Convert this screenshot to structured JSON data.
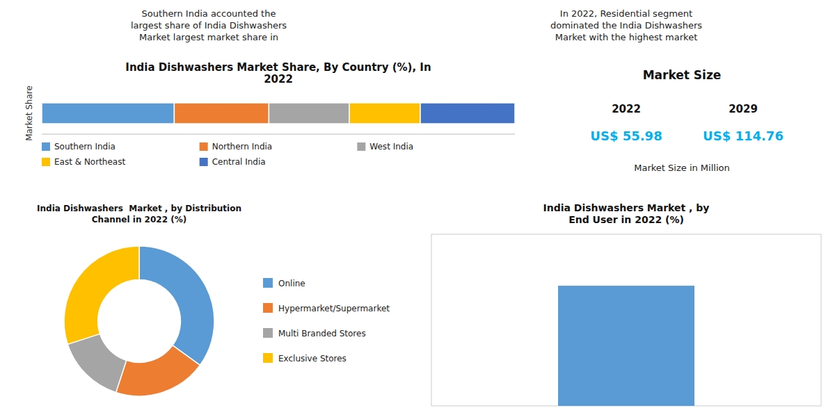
{
  "annotations": [
    "Southern India accounted the\nlargest share of India Dishwashers\nMarket largest market share in",
    "In 2022, Residential segment\ndominated the India Dishwashers\nMarket with the highest market"
  ],
  "chart_data": [
    {
      "type": "bar",
      "orientation": "horizontal",
      "stacked": true,
      "title": "India Dishwashers Market Share, By Country (%), In\n2022",
      "ylabel": "Market Share",
      "categories": [
        null
      ],
      "series": [
        {
          "name": "Southern India",
          "color": "#5B9BD5",
          "values": [
            28
          ]
        },
        {
          "name": "Northern India",
          "color": "#ED7D31",
          "values": [
            20
          ]
        },
        {
          "name": "West India",
          "color": "#A5A5A5",
          "values": [
            17
          ]
        },
        {
          "name": "East & Northeast",
          "color": "#FFC000",
          "values": [
            15
          ]
        },
        {
          "name": "Central India",
          "color": "#4472C4",
          "values": [
            20
          ]
        }
      ],
      "xlim": [
        0,
        100
      ],
      "tick_labels": false,
      "legend": "bottom"
    },
    {
      "type": "kpi",
      "title": "Market Size",
      "categories": [
        "2022",
        "2029"
      ],
      "values": [
        55.98,
        114.76
      ],
      "value_labels": [
        "US$ 55.98",
        "US$ 114.76"
      ],
      "color": "#00B0F0",
      "annotations": [
        "Market Size in Million"
      ]
    },
    {
      "type": "donut",
      "title": "India Dishwashers  Market , by Distribution\nChannel in 2022 (%)",
      "categories": [
        "Online",
        "Hypermarket/Supermarket",
        "Multi Branded Stores",
        "Exclusive Stores"
      ],
      "values": [
        35,
        20,
        15,
        30
      ],
      "colors": [
        "#5B9BD5",
        "#ED7D31",
        "#A5A5A5",
        "#FFC000"
      ],
      "legend": "right"
    },
    {
      "type": "bar",
      "title": "India Dishwashers Market , by\nEnd User in 2022 (%)",
      "categories": [
        null
      ],
      "values": [
        70
      ],
      "color": "#5B9BD5",
      "ylim": [
        0,
        100
      ],
      "tick_labels": false
    }
  ]
}
